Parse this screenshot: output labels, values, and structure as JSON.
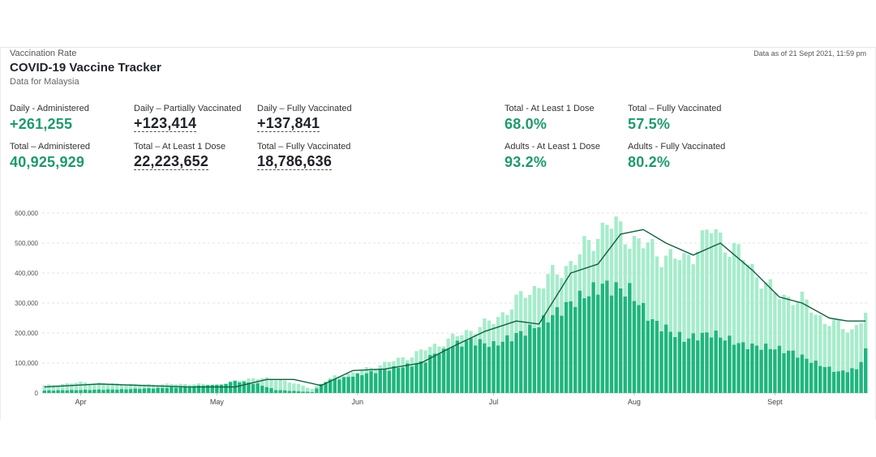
{
  "header": {
    "kicker": "Vaccination Rate",
    "title": "COVID-19 Vaccine Tracker",
    "subtitle": "Data for Malaysia",
    "as_of": "Data as of 21 Sept 2021, 11:59 pm"
  },
  "stats": {
    "daily_administered": {
      "label": "Daily - Administered",
      "value": "+261,255"
    },
    "total_administered": {
      "label": "Total – Administered",
      "value": "40,925,929"
    },
    "daily_partial": {
      "label": "Daily – Partially Vaccinated",
      "value": "+123,414"
    },
    "total_at_least_1": {
      "label": "Total – At Least 1 Dose",
      "value": "22,223,652"
    },
    "daily_fully": {
      "label": "Daily – Fully Vaccinated",
      "value": "+137,841"
    },
    "total_fully": {
      "label": "Total – Fully Vaccinated",
      "value": "18,786,636"
    },
    "pct_total_at_least_1": {
      "label": "Total - At Least 1 Dose",
      "value": "68.0%"
    },
    "pct_total_fully": {
      "label": "Total – Fully Vaccinated",
      "value": "57.5%"
    },
    "pct_adults_at_least_1": {
      "label": "Adults - At Least 1 Dose",
      "value": "93.2%"
    },
    "pct_adults_fully": {
      "label": "Adults - Fully Vaccinated",
      "value": "80.2%"
    }
  },
  "colors": {
    "total_bar": "#a6eccb",
    "second_dose_bar": "#1fb57e",
    "avg_line": "#11603f",
    "green_text": "#1f9a6b"
  },
  "chart_data": {
    "type": "bar",
    "title": "",
    "xlabel": "",
    "ylabel": "",
    "ylim": [
      0,
      600000
    ],
    "yticks": [
      0,
      100000,
      200000,
      300000,
      400000,
      500000,
      600000
    ],
    "ytick_labels": [
      "0",
      "100,000",
      "200,000",
      "300,000",
      "400,000",
      "500,000",
      "600,000"
    ],
    "x_start": "2021-03-24",
    "x_end": "2021-09-21",
    "x_ticks": [
      {
        "date": "2021-04-01",
        "label": "Apr"
      },
      {
        "date": "2021-05-01",
        "label": "May"
      },
      {
        "date": "2021-06-01",
        "label": "Jun"
      },
      {
        "date": "2021-07-01",
        "label": "Jul"
      },
      {
        "date": "2021-08-01",
        "label": "Aug"
      },
      {
        "date": "2021-09-01",
        "label": "Sept"
      }
    ],
    "grid": true,
    "series": [
      {
        "name": "",
        "kind": "bar",
        "color_key": "total_bar",
        "anchors": [
          [
            "2021-03-24",
            25000
          ],
          [
            "2021-04-01",
            35000
          ],
          [
            "2021-04-15",
            28000
          ],
          [
            "2021-04-25",
            30000
          ],
          [
            "2021-05-01",
            28000
          ],
          [
            "2021-05-09",
            50000
          ],
          [
            "2021-05-15",
            45000
          ],
          [
            "2021-05-22",
            15000
          ],
          [
            "2021-05-27",
            55000
          ],
          [
            "2021-06-01",
            70000
          ],
          [
            "2021-06-05",
            90000
          ],
          [
            "2021-06-12",
            120000
          ],
          [
            "2021-06-20",
            170000
          ],
          [
            "2021-06-26",
            210000
          ],
          [
            "2021-07-01",
            240000
          ],
          [
            "2021-07-08",
            330000
          ],
          [
            "2021-07-15",
            400000
          ],
          [
            "2021-07-20",
            460000
          ],
          [
            "2021-07-26",
            570000
          ],
          [
            "2021-07-31",
            520000
          ],
          [
            "2021-08-06",
            470000
          ],
          [
            "2021-08-12",
            440000
          ],
          [
            "2021-08-18",
            545000
          ],
          [
            "2021-08-25",
            450000
          ],
          [
            "2021-09-01",
            330000
          ],
          [
            "2021-09-07",
            310000
          ],
          [
            "2021-09-12",
            240000
          ],
          [
            "2021-09-18",
            210000
          ],
          [
            "2021-09-21",
            261255
          ]
        ]
      },
      {
        "name": "",
        "kind": "bar",
        "color_key": "second_dose_bar",
        "anchors": [
          [
            "2021-03-24",
            8000
          ],
          [
            "2021-04-10",
            12000
          ],
          [
            "2021-04-25",
            20000
          ],
          [
            "2021-05-05",
            40000
          ],
          [
            "2021-05-10",
            30000
          ],
          [
            "2021-05-14",
            10000
          ],
          [
            "2021-05-22",
            3000
          ],
          [
            "2021-05-25",
            40000
          ],
          [
            "2021-06-01",
            60000
          ],
          [
            "2021-06-08",
            80000
          ],
          [
            "2021-06-15",
            100000
          ],
          [
            "2021-06-20",
            150000
          ],
          [
            "2021-06-26",
            175000
          ],
          [
            "2021-07-01",
            160000
          ],
          [
            "2021-07-10",
            220000
          ],
          [
            "2021-07-18",
            300000
          ],
          [
            "2021-07-25",
            360000
          ],
          [
            "2021-07-31",
            340000
          ],
          [
            "2021-08-05",
            240000
          ],
          [
            "2021-08-12",
            180000
          ],
          [
            "2021-08-18",
            200000
          ],
          [
            "2021-08-25",
            160000
          ],
          [
            "2021-09-01",
            150000
          ],
          [
            "2021-09-05",
            135000
          ],
          [
            "2021-09-10",
            100000
          ],
          [
            "2021-09-15",
            70000
          ],
          [
            "2021-09-19",
            80000
          ],
          [
            "2021-09-21",
            137841
          ]
        ]
      },
      {
        "name": "",
        "kind": "line",
        "color_key": "avg_line",
        "points": [
          [
            "2021-03-24",
            20000
          ],
          [
            "2021-04-05",
            30000
          ],
          [
            "2021-04-15",
            25000
          ],
          [
            "2021-04-25",
            20000
          ],
          [
            "2021-05-05",
            20000
          ],
          [
            "2021-05-12",
            45000
          ],
          [
            "2021-05-18",
            45000
          ],
          [
            "2021-05-24",
            25000
          ],
          [
            "2021-05-31",
            75000
          ],
          [
            "2021-06-07",
            80000
          ],
          [
            "2021-06-15",
            100000
          ],
          [
            "2021-06-22",
            155000
          ],
          [
            "2021-06-29",
            205000
          ],
          [
            "2021-07-06",
            240000
          ],
          [
            "2021-07-11",
            230000
          ],
          [
            "2021-07-18",
            400000
          ],
          [
            "2021-07-24",
            430000
          ],
          [
            "2021-07-29",
            530000
          ],
          [
            "2021-08-03",
            545000
          ],
          [
            "2021-08-08",
            500000
          ],
          [
            "2021-08-14",
            460000
          ],
          [
            "2021-08-20",
            500000
          ],
          [
            "2021-08-27",
            410000
          ],
          [
            "2021-09-02",
            320000
          ],
          [
            "2021-09-07",
            300000
          ],
          [
            "2021-09-13",
            250000
          ],
          [
            "2021-09-17",
            240000
          ],
          [
            "2021-09-21",
            240000
          ]
        ]
      }
    ]
  }
}
